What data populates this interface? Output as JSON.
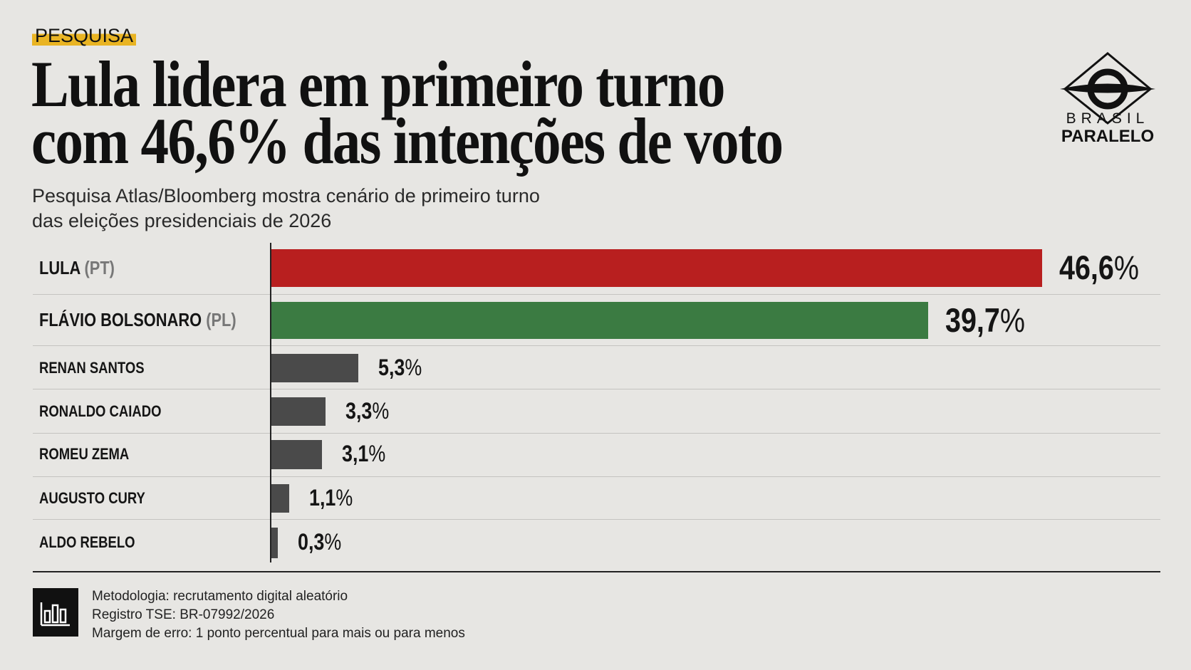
{
  "header": {
    "kicker": "PESQUISA",
    "title_line1": "Lula lidera em primeiro turno",
    "title_line2": "com 46,6% das intenções de voto",
    "subtitle_line1": "Pesquisa Atlas/Bloomberg mostra cenário de primeiro turno",
    "subtitle_line2": "das eleições presidenciais de 2026"
  },
  "logo": {
    "line1": "BRASIL",
    "line2": "PARALELO",
    "icon": "brasil-paralelo-diamond-logo"
  },
  "chart_data": {
    "type": "bar",
    "orientation": "horizontal",
    "categories": [
      "LULA",
      "FLÁVIO BOLSONARO",
      "RENAN SANTOS",
      "RONALDO CAIADO",
      "ROMEU ZEMA",
      "AUGUSTO CURY",
      "ALDO REBELO"
    ],
    "parties": [
      "(PT)",
      "(PL)",
      "",
      "",
      "",
      "",
      ""
    ],
    "values": [
      46.6,
      39.7,
      5.3,
      3.3,
      3.1,
      1.1,
      0.3
    ],
    "value_labels": [
      "46,6",
      "39,7",
      "5,3",
      "3,3",
      "3,1",
      "1,1",
      "0,3"
    ],
    "unit": "%",
    "colors": [
      "#b81f1f",
      "#3b7b42",
      "#4a4a4a",
      "#4a4a4a",
      "#4a4a4a",
      "#4a4a4a",
      "#4a4a4a"
    ],
    "grid": false
  },
  "footer": {
    "icon": "bar-chart-icon",
    "lines": [
      "Metodologia: recrutamento digital aleatório",
      "Registro TSE: BR-07992/2026",
      "Margem de erro: 1 ponto percentual para mais ou para menos"
    ]
  }
}
